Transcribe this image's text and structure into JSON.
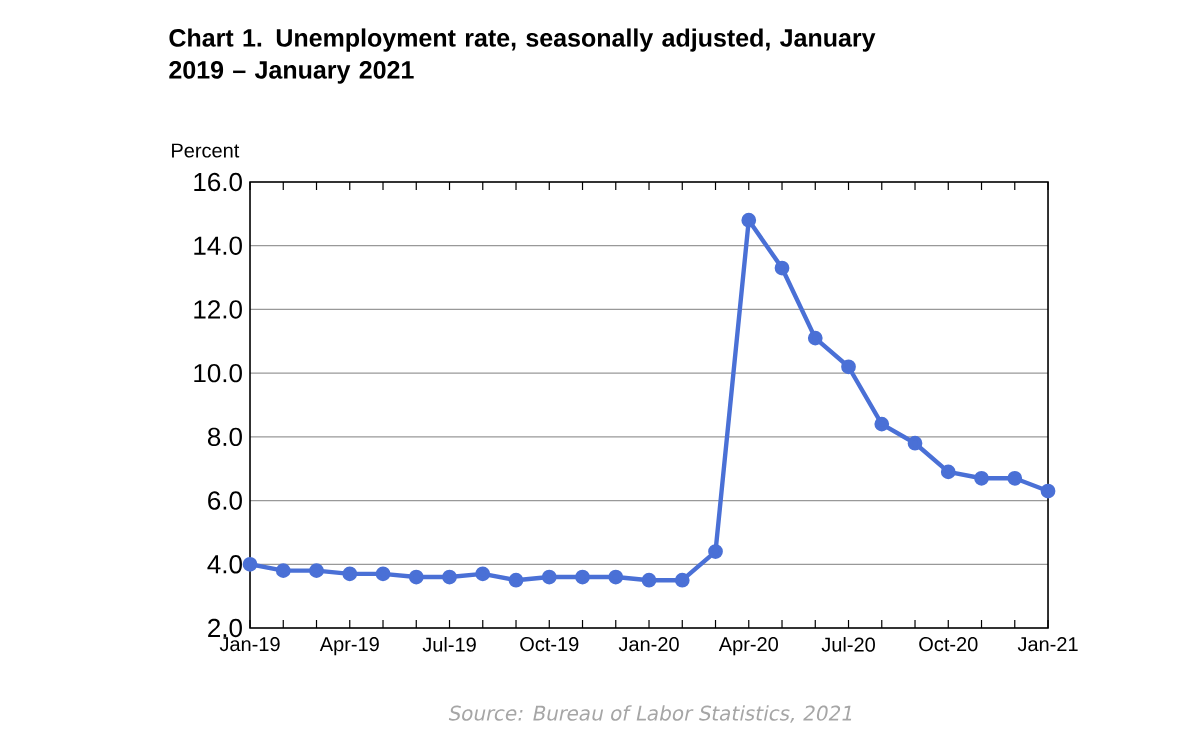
{
  "chart_data": {
    "type": "line",
    "title": "Chart 1. Unemployment rate, seasonally adjusted, January 2019 – January 2021",
    "ylabel": "Percent",
    "categories": [
      "Jan-19",
      null,
      null,
      "Apr-19",
      null,
      null,
      "Jul-19",
      null,
      null,
      "Oct-19",
      null,
      null,
      "Jan-20",
      null,
      null,
      "Apr-20",
      null,
      null,
      "Jul-20",
      null,
      null,
      "Oct-20",
      null,
      null,
      "Jan-21"
    ],
    "values": [
      4.0,
      3.8,
      3.8,
      3.7,
      3.7,
      3.6,
      3.6,
      3.7,
      3.5,
      3.6,
      3.6,
      3.6,
      3.5,
      3.5,
      4.4,
      14.8,
      13.3,
      11.1,
      10.2,
      8.4,
      7.8,
      6.9,
      6.7,
      6.7,
      6.3
    ],
    "color": "#4a70d6",
    "marker": "circle",
    "grid": "y",
    "ylim": [
      2,
      16
    ],
    "yticks": [
      {
        "value": 2,
        "label": "2.0"
      },
      {
        "value": 4,
        "label": "4.0"
      },
      {
        "value": 6,
        "label": "6.0"
      },
      {
        "value": 8,
        "label": "8.0"
      },
      {
        "value": 10,
        "label": "10.0"
      },
      {
        "value": 12,
        "label": "12.0"
      },
      {
        "value": 14,
        "label": "14.0"
      },
      {
        "value": 16,
        "label": "16.0"
      }
    ],
    "annotations": [
      "Source: Bureau of Labor Statistics, 2021"
    ]
  }
}
